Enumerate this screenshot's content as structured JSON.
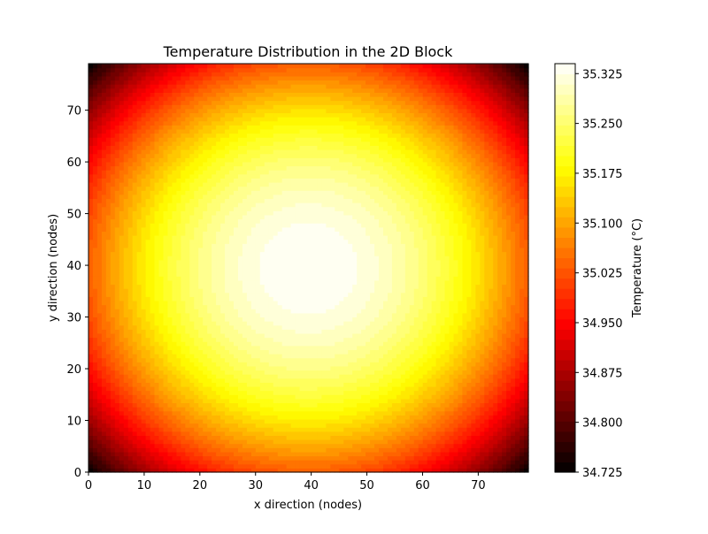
{
  "chart_data": {
    "type": "heatmap",
    "subtype": "filled-contour",
    "title": "Temperature Distribution in the 2D Block",
    "xlabel": "x direction (nodes)",
    "ylabel": "y direction (nodes)",
    "xlim": [
      0,
      79
    ],
    "ylim": [
      0,
      79
    ],
    "x_ticks": [
      0,
      10,
      20,
      30,
      40,
      50,
      60,
      70
    ],
    "y_ticks": [
      0,
      10,
      20,
      30,
      40,
      50,
      60,
      70
    ],
    "grid": false,
    "colormap": "hot",
    "colorbar": {
      "label": "Temperature (°C)",
      "vmin": 34.725,
      "vmax": 35.34,
      "ticks": [
        "34.725",
        "34.800",
        "34.875",
        "34.950",
        "35.025",
        "35.100",
        "35.175",
        "35.250",
        "35.325"
      ],
      "levels": 40
    },
    "field": {
      "peak_location": [
        39.5,
        39.5
      ],
      "peak_value": 35.34,
      "corner_value": 34.725,
      "shape": "radially symmetric, maximum at center, minimum at corners"
    }
  }
}
